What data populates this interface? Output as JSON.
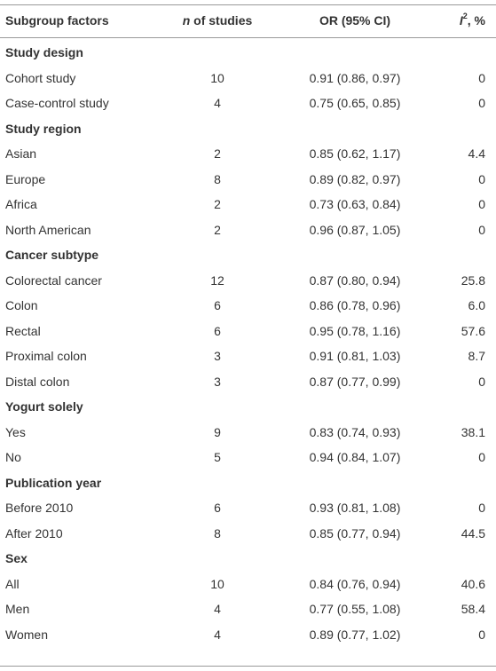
{
  "header": {
    "col_factor": "Subgroup factors",
    "col_n_italic": "n",
    "col_n_rest": " of studies",
    "col_or": "OR (95% CI)",
    "col_i2_italic": "I",
    "col_i2_sup": "2",
    "col_i2_rest": ", %"
  },
  "groups": [
    {
      "label": "Study design",
      "rows": [
        {
          "factor": "Cohort study",
          "n": "10",
          "or": "0.91 (0.86, 0.97)",
          "i2": "0"
        },
        {
          "factor": "Case-control study",
          "n": "4",
          "or": "0.75 (0.65, 0.85)",
          "i2": "0"
        }
      ]
    },
    {
      "label": "Study region",
      "rows": [
        {
          "factor": "Asian",
          "n": "2",
          "or": "0.85 (0.62, 1.17)",
          "i2": "4.4"
        },
        {
          "factor": "Europe",
          "n": "8",
          "or": "0.89 (0.82, 0.97)",
          "i2": "0"
        },
        {
          "factor": "Africa",
          "n": "2",
          "or": "0.73 (0.63, 0.84)",
          "i2": "0"
        },
        {
          "factor": "North American",
          "n": "2",
          "or": "0.96 (0.87, 1.05)",
          "i2": "0"
        }
      ]
    },
    {
      "label": "Cancer subtype",
      "rows": [
        {
          "factor": "Colorectal cancer",
          "n": "12",
          "or": "0.87 (0.80, 0.94)",
          "i2": "25.8"
        },
        {
          "factor": "Colon",
          "n": "6",
          "or": "0.86 (0.78, 0.96)",
          "i2": "6.0"
        },
        {
          "factor": "Rectal",
          "n": "6",
          "or": "0.95 (0.78, 1.16)",
          "i2": "57.6"
        },
        {
          "factor": "Proximal colon",
          "n": "3",
          "or": "0.91 (0.81, 1.03)",
          "i2": "8.7"
        },
        {
          "factor": "Distal colon",
          "n": "3",
          "or": "0.87 (0.77, 0.99)",
          "i2": "0"
        }
      ]
    },
    {
      "label": "Yogurt solely",
      "rows": [
        {
          "factor": "Yes",
          "n": "9",
          "or": "0.83 (0.74, 0.93)",
          "i2": "38.1"
        },
        {
          "factor": "No",
          "n": "5",
          "or": "0.94 (0.84, 1.07)",
          "i2": "0"
        }
      ]
    },
    {
      "label": "Publication year",
      "rows": [
        {
          "factor": "Before 2010",
          "n": "6",
          "or": "0.93 (0.81, 1.08)",
          "i2": "0"
        },
        {
          "factor": "After 2010",
          "n": "8",
          "or": "0.85 (0.77, 0.94)",
          "i2": "44.5"
        }
      ]
    },
    {
      "label": "Sex",
      "rows": [
        {
          "factor": "All",
          "n": "10",
          "or": "0.84 (0.76, 0.94)",
          "i2": "40.6"
        },
        {
          "factor": "Men",
          "n": "4",
          "or": "0.77 (0.55, 1.08)",
          "i2": "58.4"
        },
        {
          "factor": "Women",
          "n": "4",
          "or": "0.89 (0.77, 1.02)",
          "i2": "0"
        }
      ]
    }
  ]
}
